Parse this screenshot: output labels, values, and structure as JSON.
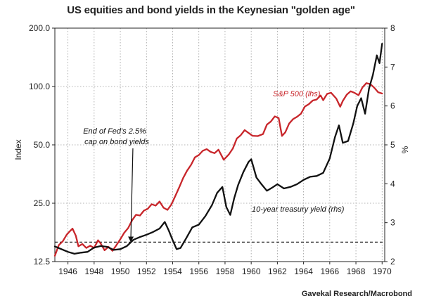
{
  "chart_data": {
    "type": "line",
    "title": "US equities and bond yields in the Keynesian \"golden age\"",
    "source": "Gavekal Research/Macrobond",
    "ylabel_left": "Index",
    "ylabel_right": "%",
    "left_scale": "log",
    "yticks_left": [
      "200.0",
      "100.0",
      "50.0",
      "25.0",
      "12.5"
    ],
    "ytick_values_left": [
      200,
      100,
      50,
      25,
      12.5
    ],
    "yticks_right": [
      "8",
      "7",
      "6",
      "5",
      "4",
      "3",
      "2"
    ],
    "ytick_values_right": [
      8,
      7,
      6,
      5,
      4,
      3,
      2
    ],
    "xticks": [
      "1946",
      "1948",
      "1950",
      "1952",
      "1954",
      "1956",
      "1958",
      "1960",
      "1962",
      "1964",
      "1966",
      "1968",
      "1970"
    ],
    "xtick_values": [
      1946,
      1948,
      1950,
      1952,
      1954,
      1956,
      1958,
      1960,
      1962,
      1964,
      1966,
      1968,
      1970
    ],
    "xlim": [
      1945,
      1970.2
    ],
    "ylim_left": [
      12.5,
      200
    ],
    "ylim_right": [
      2,
      8
    ],
    "grid": true,
    "reference_line": {
      "axis": "right",
      "value": 2.5,
      "style": "dashed"
    },
    "series": [
      {
        "name": "S&P 500 (lhs)",
        "axis": "left",
        "color": "#c8262b",
        "x": [
          1945.0,
          1945.3,
          1945.6,
          1945.9,
          1946.1,
          1946.35,
          1946.6,
          1946.8,
          1947.1,
          1947.4,
          1947.7,
          1948.0,
          1948.3,
          1948.5,
          1948.8,
          1949.1,
          1949.4,
          1949.7,
          1950.0,
          1950.3,
          1950.6,
          1950.9,
          1951.2,
          1951.5,
          1951.8,
          1952.1,
          1952.4,
          1952.7,
          1953.0,
          1953.3,
          1953.6,
          1953.9,
          1954.2,
          1954.5,
          1954.8,
          1955.1,
          1955.4,
          1955.7,
          1956.0,
          1956.3,
          1956.6,
          1956.9,
          1957.2,
          1957.5,
          1957.9,
          1958.3,
          1958.6,
          1958.9,
          1959.2,
          1959.5,
          1959.8,
          1960.1,
          1960.5,
          1960.9,
          1961.2,
          1961.5,
          1961.8,
          1962.1,
          1962.35,
          1962.6,
          1962.9,
          1963.2,
          1963.5,
          1963.8,
          1964.1,
          1964.4,
          1964.7,
          1965.0,
          1965.3,
          1965.5,
          1965.8,
          1966.1,
          1966.5,
          1966.8,
          1967.0,
          1967.3,
          1967.6,
          1967.9,
          1968.2,
          1968.5,
          1968.8,
          1969.1,
          1969.4,
          1969.7,
          1970.0
        ],
        "y": [
          13.4,
          15.2,
          15.9,
          17.2,
          17.8,
          18.5,
          17.0,
          15.0,
          15.4,
          14.7,
          15.1,
          14.7,
          16.1,
          15.5,
          14.3,
          14.9,
          14.2,
          15.2,
          16.3,
          17.6,
          18.6,
          20.4,
          21.8,
          21.6,
          22.9,
          23.4,
          24.7,
          24.3,
          25.5,
          23.7,
          23.1,
          24.6,
          27.2,
          30.2,
          33.7,
          36.8,
          39.4,
          43.1,
          44.3,
          46.6,
          47.5,
          46.0,
          45.3,
          47.2,
          41.9,
          44.7,
          47.9,
          53.9,
          56.1,
          59.6,
          57.6,
          55.7,
          55.5,
          56.8,
          63.6,
          66.0,
          70.1,
          68.8,
          55.6,
          58.0,
          64.4,
          67.9,
          69.8,
          72.4,
          78.8,
          81.1,
          84.6,
          85.7,
          89.9,
          85.0,
          91.6,
          92.8,
          86.7,
          78.6,
          84.3,
          90.8,
          94.5,
          92.7,
          90.2,
          99.0,
          104.1,
          102.9,
          98.6,
          93.4,
          92.0
        ]
      },
      {
        "name": "10-year treasury yield (rhs)",
        "axis": "right",
        "color": "#111111",
        "x": [
          1945.0,
          1945.5,
          1946.0,
          1946.5,
          1947.0,
          1947.5,
          1948.0,
          1948.5,
          1949.0,
          1949.5,
          1950.0,
          1950.5,
          1951.0,
          1951.5,
          1952.0,
          1952.5,
          1953.0,
          1953.4,
          1953.7,
          1954.0,
          1954.3,
          1954.6,
          1955.0,
          1955.5,
          1956.0,
          1956.5,
          1957.0,
          1957.4,
          1957.8,
          1958.1,
          1958.4,
          1958.7,
          1959.0,
          1959.4,
          1959.8,
          1960.0,
          1960.4,
          1960.8,
          1961.2,
          1961.6,
          1962.0,
          1962.5,
          1963.0,
          1963.5,
          1964.0,
          1964.5,
          1965.0,
          1965.5,
          1966.0,
          1966.4,
          1966.7,
          1967.0,
          1967.4,
          1967.8,
          1968.1,
          1968.4,
          1968.7,
          1969.0,
          1969.3,
          1969.6,
          1969.8,
          1970.0
        ],
        "y": [
          2.39,
          2.32,
          2.25,
          2.2,
          2.23,
          2.25,
          2.36,
          2.4,
          2.38,
          2.3,
          2.32,
          2.4,
          2.56,
          2.63,
          2.69,
          2.76,
          2.85,
          3.02,
          2.8,
          2.55,
          2.32,
          2.35,
          2.58,
          2.88,
          2.95,
          3.17,
          3.45,
          3.77,
          3.92,
          3.4,
          3.2,
          3.63,
          3.97,
          4.3,
          4.56,
          4.63,
          4.16,
          3.98,
          3.82,
          3.9,
          3.99,
          3.88,
          3.92,
          3.99,
          4.1,
          4.18,
          4.2,
          4.28,
          4.65,
          5.2,
          5.5,
          5.05,
          5.1,
          5.55,
          6.0,
          6.2,
          5.8,
          6.45,
          6.8,
          7.3,
          7.1,
          7.6
        ]
      }
    ],
    "annotations": [
      {
        "text_lines": [
          "End of Fed's 2.5%",
          "cap on bond yields"
        ],
        "arrow_to": {
          "x": 1950.8,
          "axis": "right",
          "y": 2.5
        }
      },
      {
        "text_lines": [
          "S&P 500  (lhs)"
        ],
        "color": "#c8262b"
      },
      {
        "text_lines": [
          "10-year treasury yield (rhs)"
        ]
      }
    ]
  }
}
